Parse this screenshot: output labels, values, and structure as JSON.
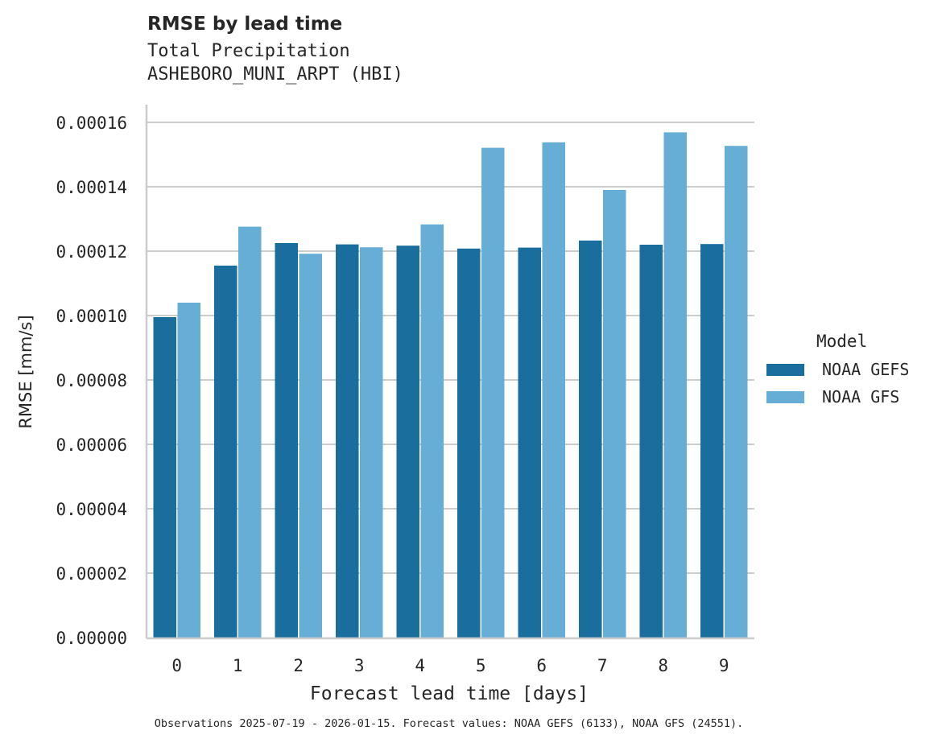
{
  "header": {
    "title": "RMSE by lead time",
    "subtitle_line1": "Total Precipitation",
    "subtitle_line2": "ASHEBORO_MUNI_ARPT (HBI)"
  },
  "footnote": "Observations 2025-07-19 - 2026-01-15. Forecast values: NOAA GEFS (6133), NOAA GFS (24551).",
  "legend": {
    "title": "Model",
    "items": [
      {
        "label": "NOAA GEFS",
        "color": "#1a6e9e"
      },
      {
        "label": "NOAA GFS",
        "color": "#67aed7"
      }
    ]
  },
  "chart_data": {
    "type": "bar",
    "title": "RMSE by lead time",
    "subtitle": "Total Precipitation / ASHEBORO_MUNI_ARPT (HBI)",
    "xlabel": "Forecast lead time [days]",
    "ylabel": "RMSE [mm/s]",
    "categories": [
      "0",
      "1",
      "2",
      "3",
      "4",
      "5",
      "6",
      "7",
      "8",
      "9"
    ],
    "series": [
      {
        "name": "NOAA GEFS",
        "color": "#1a6e9e",
        "values": [
          9.95e-05,
          0.0001155,
          0.0001225,
          0.0001221,
          0.0001217,
          0.0001208,
          0.0001211,
          0.0001233,
          0.000122,
          0.0001222
        ]
      },
      {
        "name": "NOAA GFS",
        "color": "#67aed7",
        "values": [
          0.000104,
          0.0001276,
          0.0001192,
          0.0001212,
          0.0001283,
          0.0001521,
          0.0001538,
          0.000139,
          0.0001569,
          0.0001527
        ]
      }
    ],
    "ylim": [
      0,
      0.000164
    ],
    "yticks": [
      "0.00000",
      "0.00002",
      "0.00004",
      "0.00006",
      "0.00008",
      "0.00010",
      "0.00012",
      "0.00014",
      "0.00016"
    ],
    "ytick_values": [
      0,
      2e-05,
      4e-05,
      6e-05,
      8e-05,
      0.0001,
      0.00012,
      0.00014,
      0.00016
    ],
    "grid": "horizontal",
    "legend_position": "right"
  }
}
